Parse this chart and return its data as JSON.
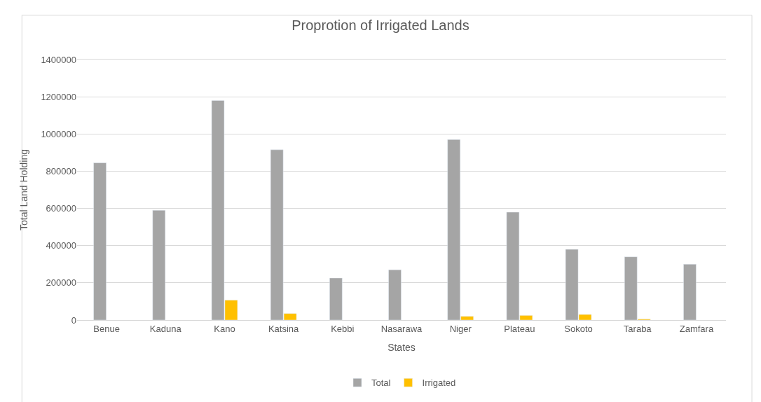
{
  "chart_data": {
    "type": "bar",
    "title": "Proprotion of Irrigated Lands",
    "xlabel": "States",
    "ylabel": "Total Land Holding",
    "categories": [
      "Benue",
      "Kaduna",
      "Kano",
      "Katsina",
      "Kebbi",
      "Nasarawa",
      "Niger",
      "Plateau",
      "Sokoto",
      "Taraba",
      "Zamfara"
    ],
    "series": [
      {
        "name": "Total",
        "color": "#a5a5a5",
        "values": [
          845000,
          590000,
          1180000,
          915000,
          226000,
          270000,
          970000,
          580000,
          380000,
          340000,
          300000
        ]
      },
      {
        "name": "Irrigated",
        "color": "#ffc000",
        "values": [
          null,
          null,
          107000,
          35000,
          null,
          null,
          20000,
          25000,
          30000,
          5000,
          null
        ]
      }
    ],
    "ylim": [
      0,
      1400000
    ],
    "yticks": [
      0,
      200000,
      400000,
      600000,
      800000,
      1000000,
      1200000,
      1400000
    ],
    "grid": "y",
    "legend": "bottom"
  }
}
